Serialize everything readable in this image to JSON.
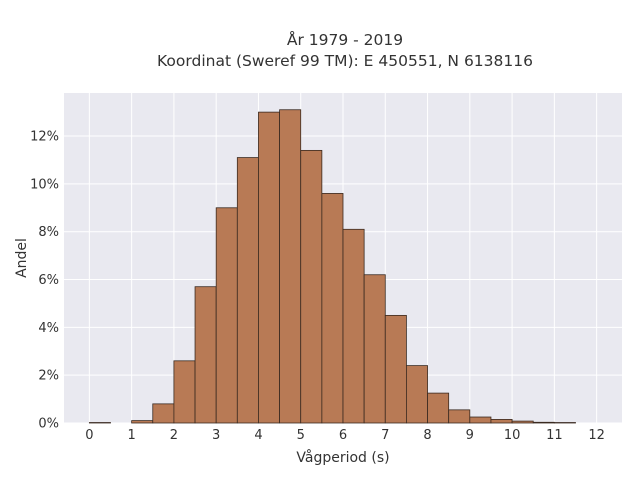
{
  "chart_data": {
    "type": "bar",
    "title": [
      "År 1979 - 2019",
      "Koordinat (Sweref 99 TM): E 450551, N 6138116"
    ],
    "xlabel": "Vågperiod (s)",
    "ylabel": "Andel",
    "x_ticks": [
      0,
      1,
      2,
      3,
      4,
      5,
      6,
      7,
      8,
      9,
      10,
      11,
      12
    ],
    "x_tick_labels": [
      "0",
      "1",
      "2",
      "3",
      "4",
      "5",
      "6",
      "7",
      "8",
      "9",
      "10",
      "11",
      "12"
    ],
    "y_ticks": [
      0,
      2,
      4,
      6,
      8,
      10,
      12
    ],
    "y_tick_labels": [
      "0%",
      "2%",
      "4%",
      "6%",
      "8%",
      "10%",
      "12%"
    ],
    "xlim": [
      -0.6,
      12.6
    ],
    "ylim": [
      0,
      13.8
    ],
    "bin_width": 0.5,
    "bin_starts": [
      0,
      0.5,
      1,
      1.5,
      2,
      2.5,
      3,
      3.5,
      4,
      4.5,
      5,
      5.5,
      6,
      6.5,
      7,
      7.5,
      8,
      8.5,
      9,
      9.5,
      10,
      10.5,
      11,
      11.5
    ],
    "values": [
      0.02,
      0.0,
      0.1,
      0.8,
      2.6,
      5.7,
      9.0,
      11.1,
      13.0,
      13.1,
      11.4,
      9.6,
      8.1,
      6.2,
      4.5,
      2.4,
      1.25,
      0.55,
      0.25,
      0.15,
      0.08,
      0.03,
      0.02,
      0.0
    ],
    "grid": true,
    "colors": {
      "bar_fill": "#b87a55",
      "bar_edge": "#3a2a20",
      "plot_background": "#e9e9f0",
      "grid": "#ffffff"
    }
  }
}
